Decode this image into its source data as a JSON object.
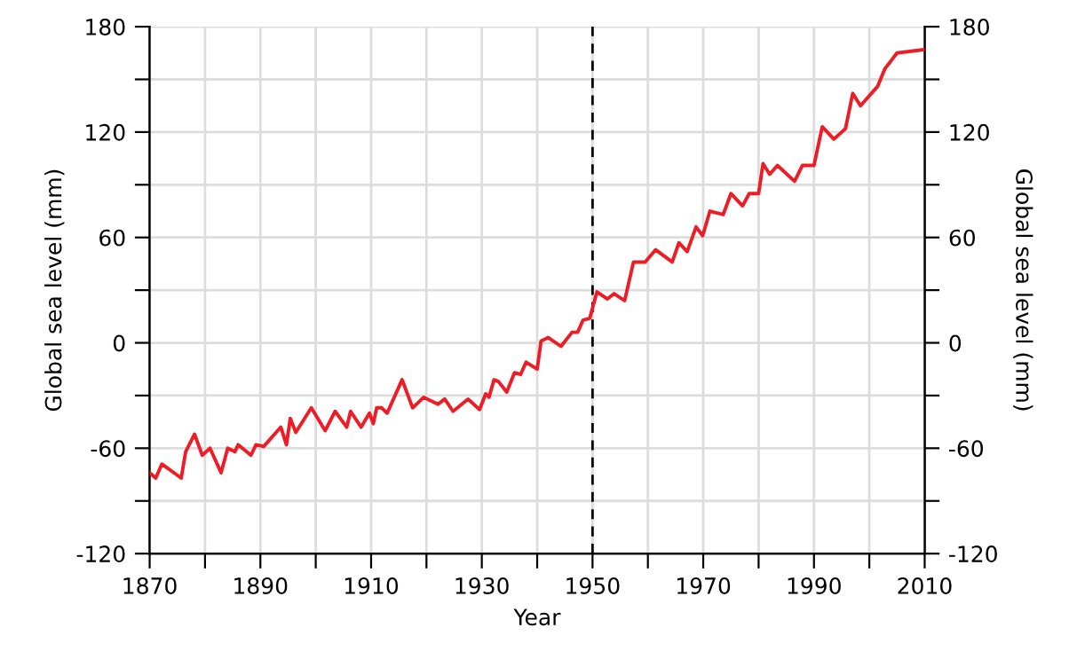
{
  "chart_data": {
    "type": "line",
    "xlabel": "Year",
    "ylabel": "Global sea level (mm)",
    "y2label": "Global sea level (mm)",
    "series": [
      {
        "color": "#ee1c25",
        "x": [
          1870,
          1871.1,
          1872.2,
          1875.7,
          1876.5,
          1878.1,
          1879.5,
          1880.9,
          1882.9,
          1884.1,
          1885.4,
          1886,
          1888.3,
          1889.2,
          1890.6,
          1893.7,
          1894.7,
          1895.4,
          1896.4,
          1899.2,
          1901.7,
          1903.5,
          1905.6,
          1906.3,
          1908.2,
          1909.7,
          1910.4,
          1911,
          1911.9,
          1912.9,
          1915.6,
          1917.5,
          1919.5,
          1922.1,
          1923.3,
          1924.8,
          1927.5,
          1929.6,
          1930.7,
          1931.3,
          1932.2,
          1933,
          1934.5,
          1935.9,
          1937,
          1938,
          1940,
          1940.7,
          1942,
          1944.3,
          1946.3,
          1947.3,
          1948.3,
          1949.5,
          1950.8,
          1952.7,
          1953.9,
          1955.8,
          1957.4,
          1959.5,
          1961.4,
          1964.4,
          1965.6,
          1967.1,
          1968.7,
          1969.9,
          1971.2,
          1973.6,
          1975,
          1977.1,
          1978.3,
          1980,
          1980.8,
          1982,
          1983.4,
          1986.5,
          1987.9,
          1990,
          1991.5,
          1993.6,
          1995.7,
          1997,
          1998.4,
          2001.5,
          2002.8,
          2005,
          2010
        ],
        "values": [
          -74,
          -77,
          -69,
          -77,
          -62,
          -52,
          -64,
          -60,
          -74,
          -60,
          -62,
          -58,
          -64,
          -58,
          -59,
          -48,
          -58,
          -43,
          -51,
          -37,
          -50,
          -39,
          -48,
          -39,
          -48,
          -40,
          -46,
          -37,
          -37,
          -40,
          -21,
          -37,
          -31,
          -35,
          -32,
          -39,
          -32,
          -38,
          -29,
          -31,
          -21,
          -22,
          -28,
          -17,
          -18,
          -11,
          -15,
          1,
          3,
          -2,
          6,
          6,
          13,
          14,
          29,
          25,
          28,
          24,
          46,
          46,
          53,
          46,
          57,
          52,
          66,
          61,
          75,
          73,
          85,
          78,
          85,
          85,
          102,
          96,
          101,
          92,
          101,
          101,
          123,
          116,
          122,
          142,
          135,
          146,
          156,
          165,
          167
        ]
      }
    ],
    "xlim": [
      1870,
      2010
    ],
    "xticks": [
      1870,
      {
        "value": 1880,
        "label": null
      },
      1890,
      {
        "value": 1900,
        "label": null
      },
      1910,
      {
        "value": 1920,
        "label": null
      },
      1930,
      {
        "value": 1940,
        "label": null
      },
      1950,
      {
        "value": 1960,
        "label": null
      },
      1970,
      {
        "value": 1980,
        "label": null
      },
      1990,
      {
        "value": 2000,
        "label": null
      },
      2010
    ],
    "ylim": [
      -120,
      180
    ],
    "yticks": [
      -120,
      {
        "value": -90,
        "label": null
      },
      -60,
      {
        "value": -30,
        "label": null
      },
      0,
      {
        "value": 30,
        "label": null
      },
      60,
      {
        "value": 90,
        "label": null
      },
      120,
      {
        "value": 150,
        "label": null
      },
      180
    ],
    "y2lim": [
      -120,
      180
    ],
    "y2ticks": [
      -120,
      {
        "value": -90,
        "label": null
      },
      -60,
      {
        "value": -30,
        "label": null
      },
      0,
      {
        "value": 30,
        "label": null
      },
      60,
      {
        "value": 90,
        "label": null
      },
      120,
      {
        "value": 150,
        "label": null
      },
      180
    ],
    "grid": true,
    "line_style": "solid",
    "marker": "none",
    "ref_lines": [
      {
        "axis": "x",
        "value": 1950,
        "color": "#000000",
        "line_style": "dashed"
      }
    ]
  }
}
